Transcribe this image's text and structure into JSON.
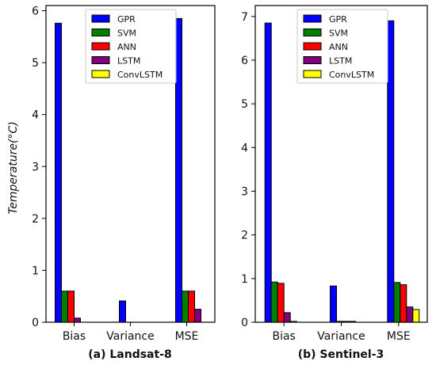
{
  "chart_data": [
    {
      "type": "bar",
      "caption": "(a) Landsat-8",
      "ylabel": "Temperature(°C)",
      "categories": [
        "Bias",
        "Variance",
        "MSE"
      ],
      "ylim": [
        0,
        6.1
      ],
      "yticks": [
        "0",
        "1",
        "2",
        "3",
        "4",
        "5",
        "6"
      ],
      "legend_position": "top-right",
      "series": [
        {
          "name": "GPR",
          "color": "#0000ff",
          "values": [
            5.76,
            0.41,
            5.85
          ]
        },
        {
          "name": "SVM",
          "color": "#008000",
          "values": [
            0.6,
            0.0,
            0.6
          ]
        },
        {
          "name": "ANN",
          "color": "#ff0000",
          "values": [
            0.6,
            0.0,
            0.6
          ]
        },
        {
          "name": "LSTM",
          "color": "#800080",
          "values": [
            0.08,
            0.0,
            0.25
          ]
        },
        {
          "name": "ConvLSTM",
          "color": "#ffff00",
          "values": [
            0.0,
            0.0,
            0.0
          ]
        }
      ]
    },
    {
      "type": "bar",
      "caption": "(b) Sentinel-3",
      "ylabel": "",
      "categories": [
        "Bias",
        "Variance",
        "MSE"
      ],
      "ylim": [
        0,
        7.25
      ],
      "yticks": [
        "0",
        "1",
        "2",
        "3",
        "4",
        "5",
        "6",
        "7"
      ],
      "legend_position": "top-right",
      "series": [
        {
          "name": "GPR",
          "color": "#0000ff",
          "values": [
            6.85,
            0.83,
            6.9
          ]
        },
        {
          "name": "SVM",
          "color": "#008000",
          "values": [
            0.92,
            0.02,
            0.91
          ]
        },
        {
          "name": "ANN",
          "color": "#ff0000",
          "values": [
            0.89,
            0.02,
            0.86
          ]
        },
        {
          "name": "LSTM",
          "color": "#800080",
          "values": [
            0.22,
            0.02,
            0.35
          ]
        },
        {
          "name": "ConvLSTM",
          "color": "#ffff00",
          "values": [
            0.02,
            0.0,
            0.29
          ]
        }
      ]
    }
  ]
}
